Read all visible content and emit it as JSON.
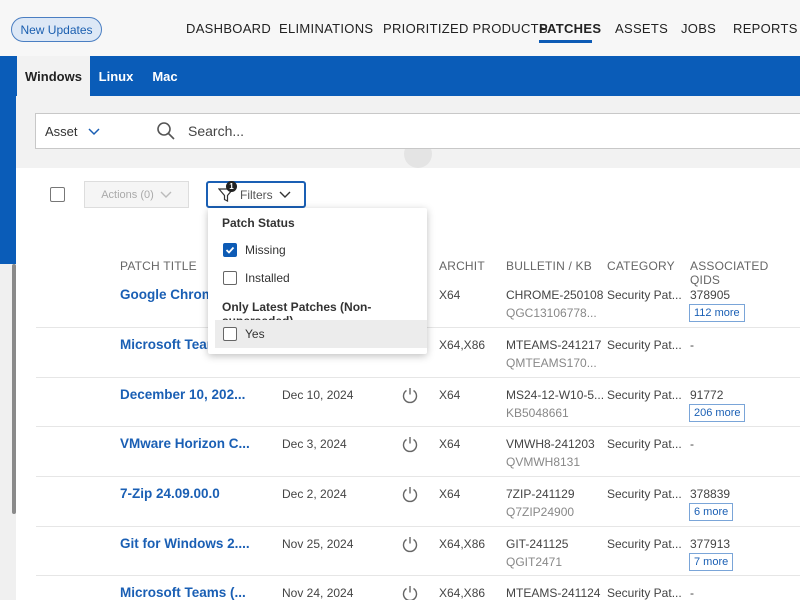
{
  "topnav": {
    "new_updates": "New Updates",
    "items": [
      "DASHBOARD",
      "ELIMINATIONS",
      "PRIORITIZED PRODUCTS",
      "PATCHES",
      "ASSETS",
      "JOBS",
      "REPORTS"
    ],
    "active": "PATCHES"
  },
  "platform_tabs": [
    "Windows",
    "Linux",
    "Mac"
  ],
  "search": {
    "scope": "Asset",
    "placeholder": "Search..."
  },
  "toolbar": {
    "actions_label": "Actions (0)",
    "filters_label": "Filters",
    "filter_count": "1"
  },
  "table": {
    "headers": [
      "PATCH TITLE",
      "ARCHIT",
      "BULLETIN / KB",
      "CATEGORY",
      "ASSOCIATED QIDS"
    ],
    "rows": [
      {
        "title": "Google Chrome",
        "date": "",
        "arch": "X64",
        "bulletin": "CHROME-250108",
        "kb": "QGC13106778...",
        "category": "Security Pat...",
        "qid": "378905",
        "more": "112 more"
      },
      {
        "title": "Microsoft Team",
        "date": "",
        "arch": "X64,X86",
        "bulletin": "MTEAMS-241217",
        "kb": "QMTEAMS170...",
        "category": "Security Pat...",
        "qid": "-",
        "more": ""
      },
      {
        "title": "December 10, 202...",
        "date": "Dec 10, 2024",
        "arch": "X64",
        "bulletin": "MS24-12-W10-5...",
        "kb": "KB5048661",
        "category": "Security Pat...",
        "qid": "91772",
        "more": "206 more"
      },
      {
        "title": "VMware Horizon C...",
        "date": "Dec 3, 2024",
        "arch": "X64",
        "bulletin": "VMWH8-241203",
        "kb": "QVMWH8131",
        "category": "Security Pat...",
        "qid": "-",
        "more": ""
      },
      {
        "title": "7-Zip 24.09.00.0",
        "date": "Dec 2, 2024",
        "arch": "X64",
        "bulletin": "7ZIP-241129",
        "kb": "Q7ZIP24900",
        "category": "Security Pat...",
        "qid": "378839",
        "more": "6 more"
      },
      {
        "title": "Git for Windows 2....",
        "date": "Nov 25, 2024",
        "arch": "X64,X86",
        "bulletin": "GIT-241125",
        "kb": "QGIT2471",
        "category": "Security Pat...",
        "qid": "377913",
        "more": "7 more"
      },
      {
        "title": "Microsoft Teams (...",
        "date": "Nov 24, 2024",
        "arch": "X64,X86",
        "bulletin": "MTEAMS-241124",
        "kb": "",
        "category": "Security Pat...",
        "qid": "-",
        "more": ""
      }
    ]
  },
  "filter_menu": {
    "patch_status_heading": "Patch Status",
    "missing": "Missing",
    "missing_checked": true,
    "installed": "Installed",
    "installed_checked": false,
    "latest_heading": "Only Latest Patches (Non-superseded)",
    "yes": "Yes",
    "yes_checked": false
  },
  "colors": {
    "brand_blue": "#0a5cb8",
    "link_blue": "#1a5fb4"
  }
}
